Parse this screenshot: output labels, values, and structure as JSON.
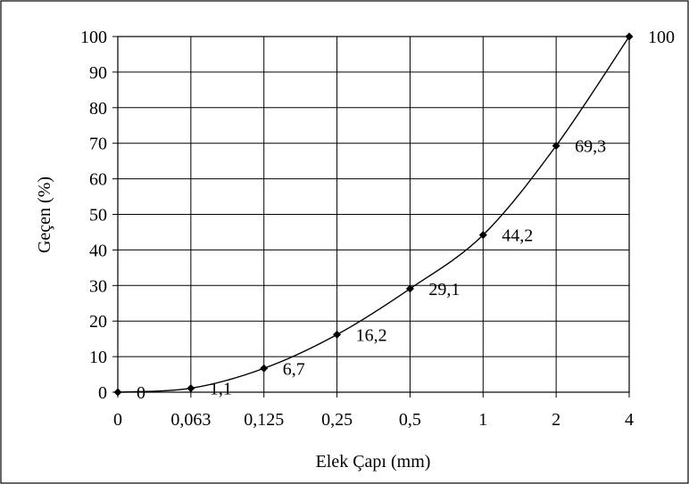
{
  "chart_data": {
    "type": "line",
    "xlabel": "Elek Çapı (mm)",
    "ylabel": "Geçen (%)",
    "categories": [
      "0",
      "0,063",
      "0,125",
      "0,25",
      "0,5",
      "1",
      "2",
      "4"
    ],
    "series": [
      {
        "values": [
          0,
          1.1,
          6.7,
          16.2,
          29.1,
          44.2,
          69.3,
          100
        ],
        "data_labels": [
          "0",
          "1,1",
          "6,7",
          "16,2",
          "29,1",
          "44,2",
          "69,3",
          "100"
        ]
      }
    ],
    "ylim": [
      0,
      100
    ],
    "yticks": [
      "0",
      "10",
      "20",
      "30",
      "40",
      "50",
      "60",
      "70",
      "80",
      "90",
      "100"
    ],
    "grid": true,
    "legend": "none",
    "colors": {
      "line": "#000000",
      "grid": "#000000",
      "border": "#000000"
    }
  }
}
